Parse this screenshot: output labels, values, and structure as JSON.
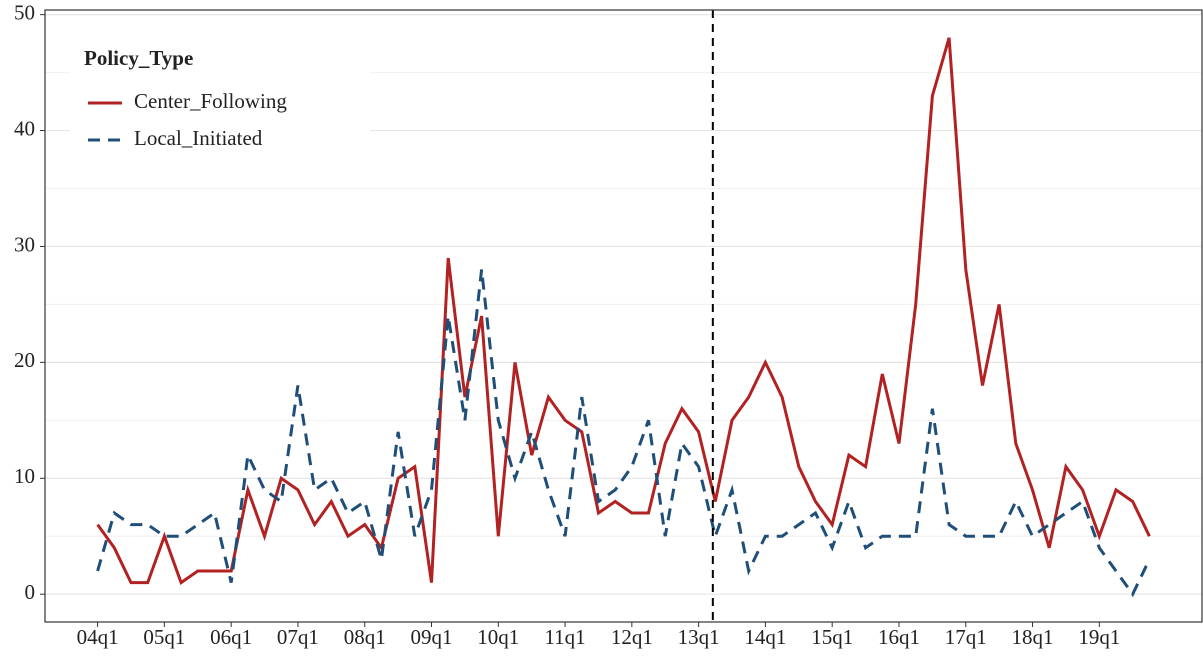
{
  "chart_data": {
    "type": "line",
    "categories": [
      "04q1",
      null,
      null,
      null,
      "05q1",
      null,
      null,
      null,
      "06q1",
      null,
      null,
      null,
      "07q1",
      null,
      null,
      null,
      "08q1",
      null,
      null,
      null,
      "09q1",
      null,
      null,
      null,
      "10q1",
      null,
      null,
      null,
      "11q1",
      null,
      null,
      null,
      "12q1",
      null,
      null,
      null,
      "13q1",
      null,
      null,
      null,
      "14q1",
      null,
      null,
      null,
      "15q1",
      null,
      null,
      null,
      "16q1",
      null,
      null,
      null,
      "17q1",
      null,
      null,
      null,
      "18q1",
      null,
      null,
      null,
      "19q1",
      null,
      null,
      null
    ],
    "series": [
      {
        "name": "Center_Following",
        "color": "#b22222",
        "dash": false,
        "values": [
          6,
          4,
          1,
          1,
          5,
          1,
          2,
          2,
          2,
          9,
          5,
          10,
          9,
          6,
          8,
          5,
          6,
          4,
          10,
          11,
          1,
          29,
          17,
          24,
          5,
          20,
          12,
          17,
          15,
          14,
          7,
          8,
          7,
          7,
          13,
          16,
          14,
          8,
          15,
          17,
          20,
          17,
          11,
          8,
          6,
          12,
          11,
          19,
          13,
          25,
          43,
          48,
          28,
          18,
          25,
          13,
          9,
          4,
          11,
          9,
          5,
          9,
          8,
          5
        ]
      },
      {
        "name": "Local_Initiated",
        "color": "#1f4e79",
        "dash": true,
        "values": [
          2,
          7,
          6,
          6,
          5,
          5,
          6,
          7,
          1,
          12,
          9,
          8,
          18,
          9,
          10,
          7,
          8,
          3,
          14,
          5,
          9,
          24,
          15,
          28,
          15,
          10,
          14,
          9,
          5,
          17,
          8,
          9,
          11,
          15,
          5,
          13,
          11,
          5,
          9,
          2,
          5,
          5,
          6,
          7,
          4,
          8,
          4,
          5,
          5,
          5,
          16,
          6,
          5,
          5,
          5,
          8,
          5,
          6,
          7,
          8,
          4,
          2,
          0,
          3
        ]
      }
    ],
    "legend_title": "Policy_Type",
    "legend_position": "top-left",
    "vline": 36.85,
    "ylim": [
      -2.4,
      50.4
    ],
    "yticks": [
      0,
      10,
      20,
      30,
      40,
      50
    ],
    "yticks_minor": [
      5,
      15,
      25,
      35,
      45
    ],
    "grid": true
  }
}
